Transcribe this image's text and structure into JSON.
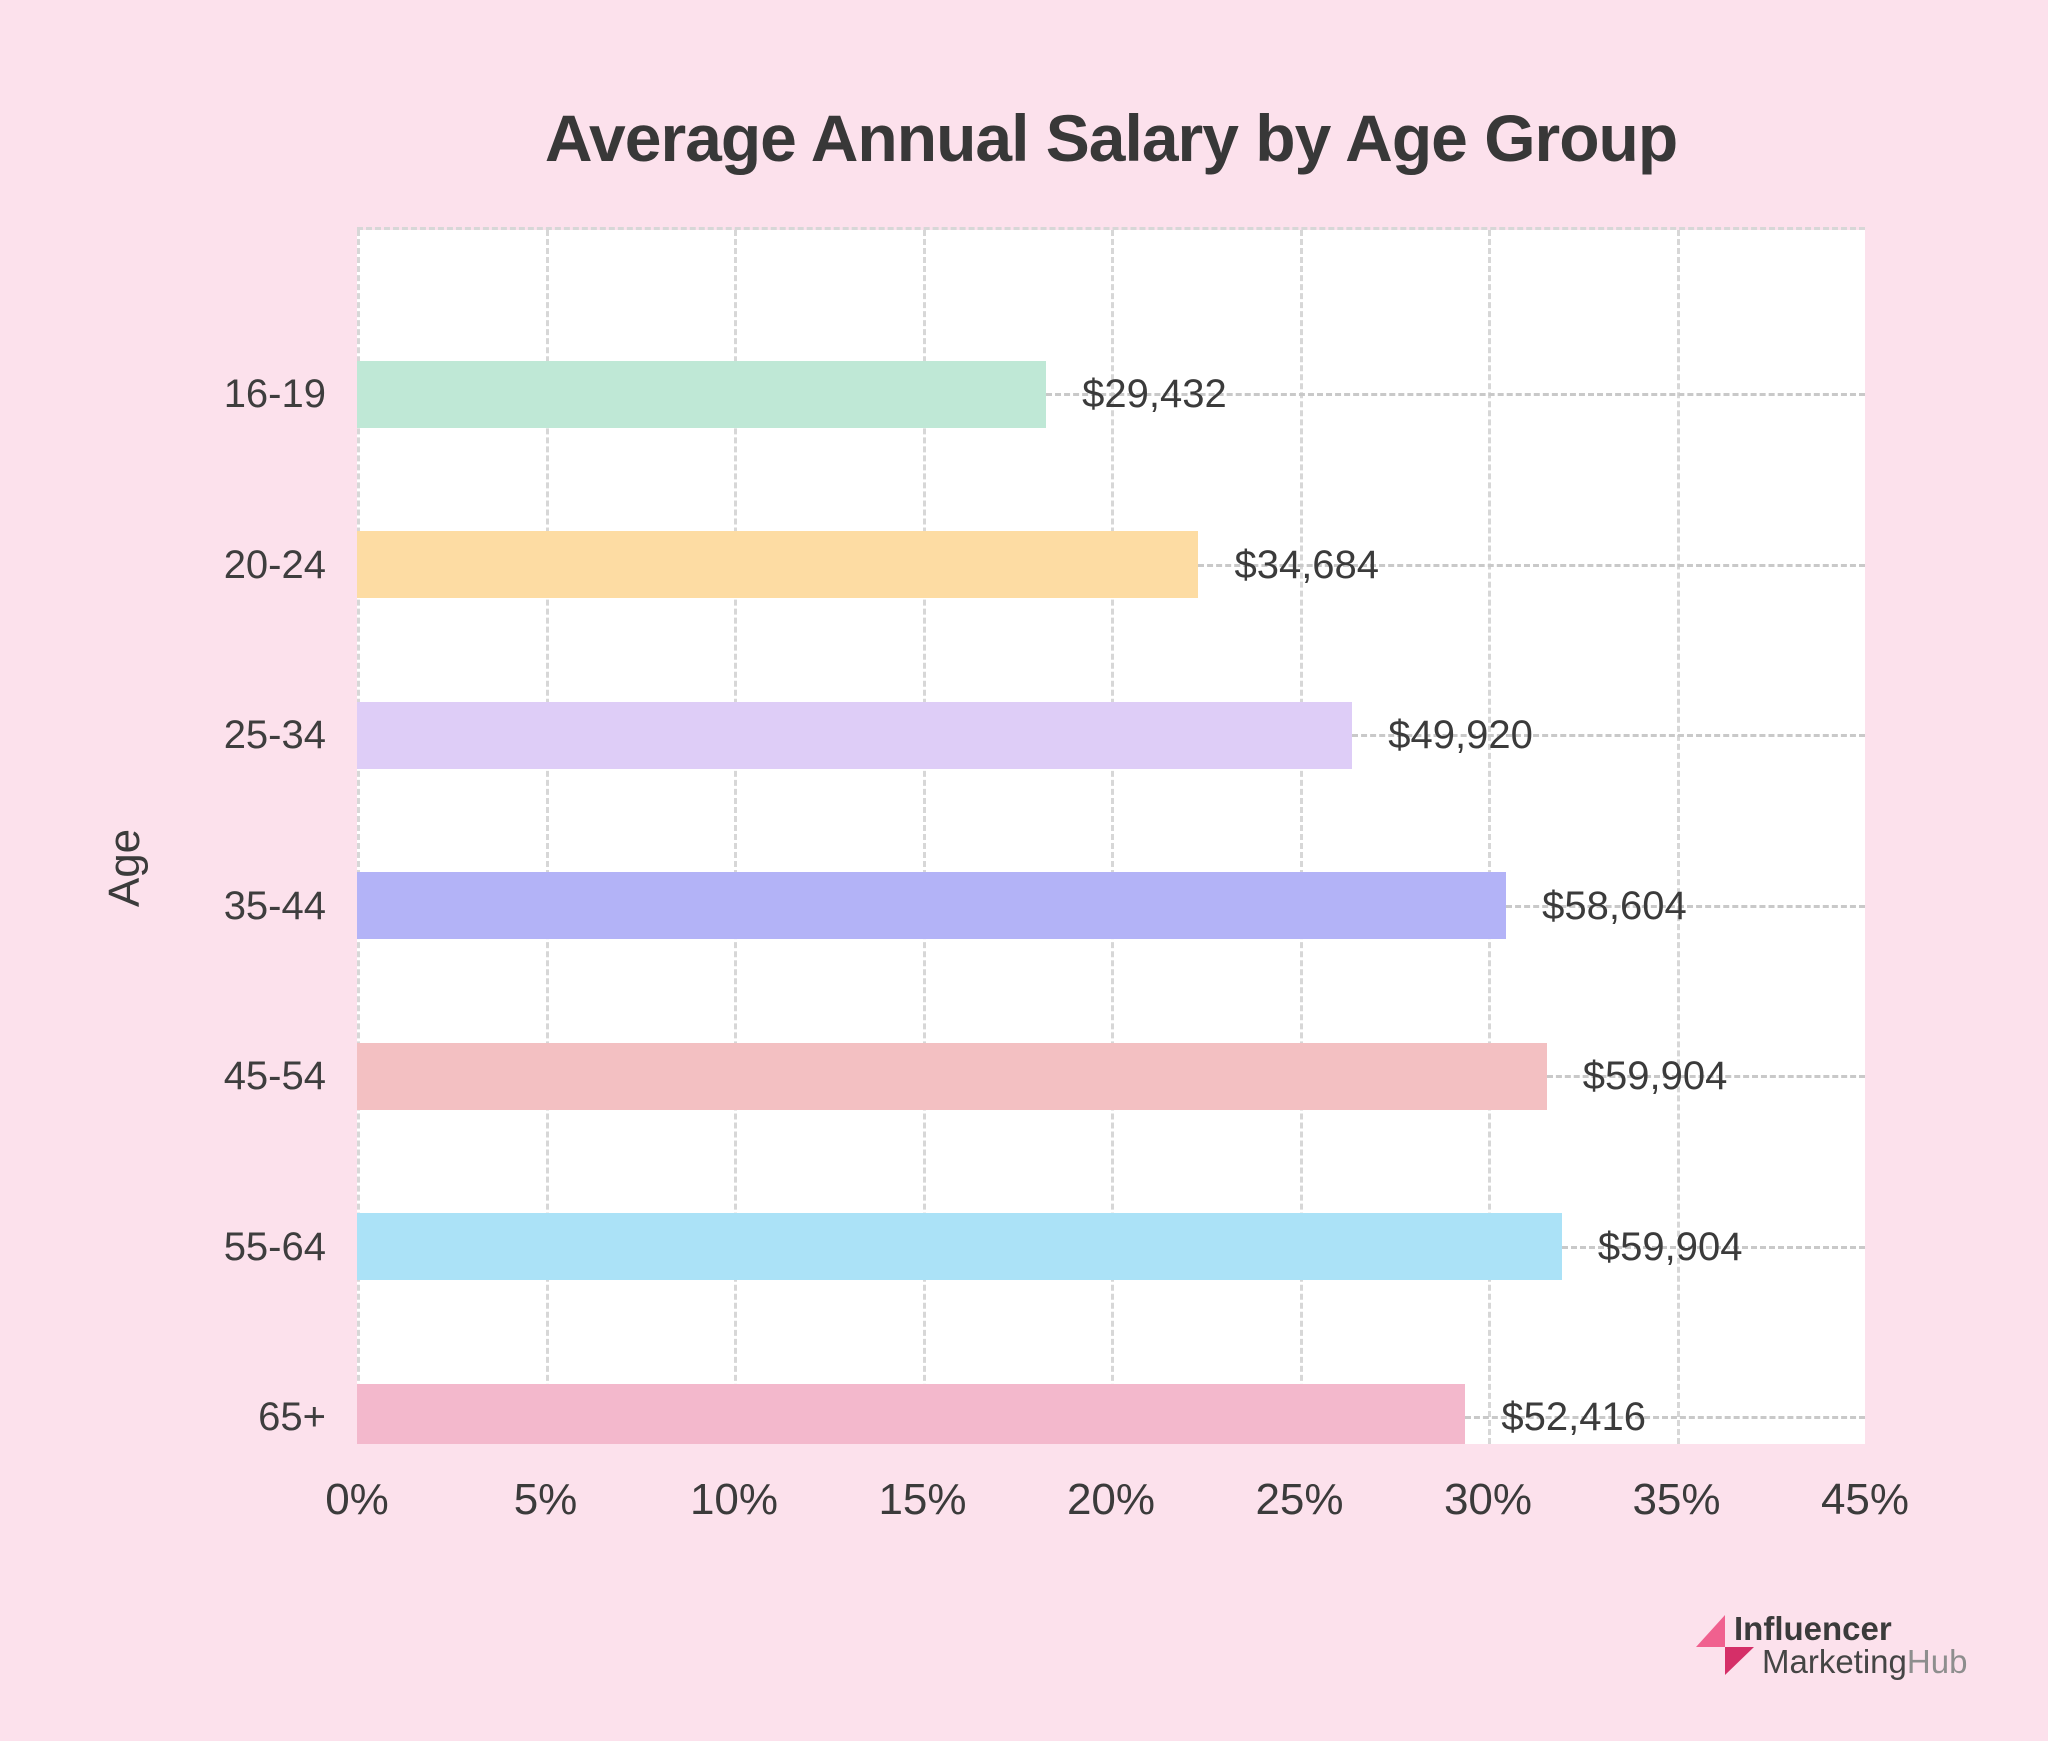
{
  "title": "Average Annual Salary by Age Group",
  "chart_data": {
    "type": "bar",
    "orientation": "horizontal",
    "title": "Average Annual Salary by Age Group",
    "ylabel": "Age",
    "xlabel": "",
    "categories": [
      "16-19",
      "20-24",
      "25-34",
      "35-44",
      "45-54",
      "55-64",
      "65+"
    ],
    "value_labels": [
      "$29,432",
      "$34,684",
      "$49,920",
      "$58,604",
      "$59,904",
      "$59,904",
      "$52,416"
    ],
    "values_usd": [
      29432,
      34684,
      49920,
      58604,
      59904,
      59904,
      52416
    ],
    "bar_length_axis_percent_est": [
      18.3,
      22.3,
      26.4,
      30.5,
      31.6,
      31.9,
      29.4
    ],
    "bar_width_fraction_of_plot": [
      0.457,
      0.558,
      0.66,
      0.762,
      0.789,
      0.799,
      0.735
    ],
    "bar_colors": [
      "#BFE8D6",
      "#FDDCA3",
      "#DECDF7",
      "#B3B3F7",
      "#F3C0C2",
      "#ABE2F7",
      "#F3B8CC"
    ],
    "x_tick_labels": [
      "0%",
      "5%",
      "10%",
      "15%",
      "20%",
      "25%",
      "30%",
      "35%",
      "45%"
    ],
    "grid": "vertical dashed gridlines at each x tick, dashed plot top border",
    "legend": "none"
  },
  "colors": {
    "page_bg": "#FCE1EC",
    "plot_bg": "#FFFFFF",
    "text": "#3A3A3A",
    "gridline": "#D7D7D7",
    "leader_line": "#C9C9C9"
  },
  "logo": {
    "line1": "Influencer",
    "line2_dark": "Marketing",
    "line2_light": "Hub",
    "icon_light": "#F0618F",
    "icon_dark": "#D52F68"
  }
}
